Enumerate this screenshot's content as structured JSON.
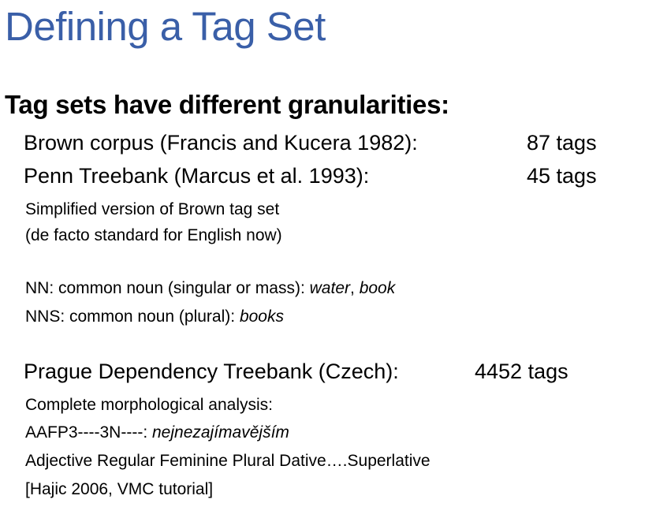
{
  "title": "Defining a Tag Set",
  "heading": "Tag sets have different granularities:",
  "brown": {
    "label": "Brown corpus (Francis and Kucera 1982):",
    "count": "87 tags"
  },
  "penn": {
    "label": "Penn Treebank (Marcus et al. 1993):",
    "count": "45 tags",
    "note1": "Simplified version of Brown tag set",
    "note2": "(de facto standard for English now)"
  },
  "nn": {
    "prefix": "NN: common noun (singular or mass):",
    "ex1": "water",
    "sep": ",",
    "ex2": "book"
  },
  "nns": {
    "prefix": "NNS: common noun (plural):",
    "ex1": "books"
  },
  "prague": {
    "label": "Prague Dependency Treebank (Czech):",
    "count": "4452 tags",
    "line1": "Complete morphological analysis:",
    "tag_prefix": "AAFP3----3N----:",
    "tag_word": "nejnezajímavějším",
    "line3": "Adjective Regular Feminine Plural Dative….Superlative",
    "line4": "[Hajic 2006, VMC tutorial]"
  }
}
